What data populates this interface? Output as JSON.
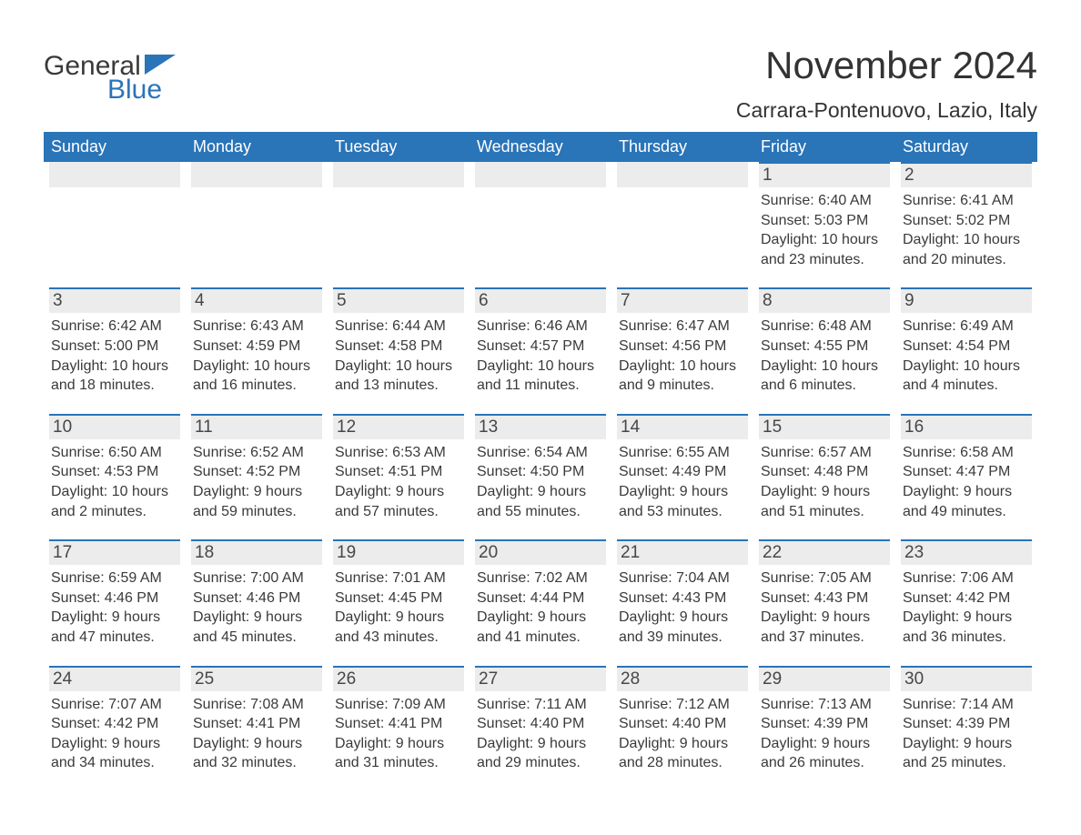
{
  "brand": {
    "word1": "General",
    "word2": "Blue",
    "accent_color": "#2a74b8"
  },
  "title": "November 2024",
  "location": "Carrara-Pontenuovo, Lazio, Italy",
  "colors": {
    "header_bg": "#2a74b8",
    "header_text": "#ffffff",
    "daynum_bg": "#ececec",
    "daynum_border": "#2a74b8",
    "body_text": "#3a3a3a",
    "page_bg": "#ffffff"
  },
  "typography": {
    "title_fontsize": 42,
    "location_fontsize": 23,
    "header_fontsize": 18,
    "daynum_fontsize": 19,
    "body_fontsize": 16
  },
  "layout": {
    "columns": 7,
    "rows": 5,
    "start_day_index": 5
  },
  "weekdays": [
    "Sunday",
    "Monday",
    "Tuesday",
    "Wednesday",
    "Thursday",
    "Friday",
    "Saturday"
  ],
  "days": [
    {
      "n": "1",
      "sunrise": "Sunrise: 6:40 AM",
      "sunset": "Sunset: 5:03 PM",
      "daylight": "Daylight: 10 hours and 23 minutes."
    },
    {
      "n": "2",
      "sunrise": "Sunrise: 6:41 AM",
      "sunset": "Sunset: 5:02 PM",
      "daylight": "Daylight: 10 hours and 20 minutes."
    },
    {
      "n": "3",
      "sunrise": "Sunrise: 6:42 AM",
      "sunset": "Sunset: 5:00 PM",
      "daylight": "Daylight: 10 hours and 18 minutes."
    },
    {
      "n": "4",
      "sunrise": "Sunrise: 6:43 AM",
      "sunset": "Sunset: 4:59 PM",
      "daylight": "Daylight: 10 hours and 16 minutes."
    },
    {
      "n": "5",
      "sunrise": "Sunrise: 6:44 AM",
      "sunset": "Sunset: 4:58 PM",
      "daylight": "Daylight: 10 hours and 13 minutes."
    },
    {
      "n": "6",
      "sunrise": "Sunrise: 6:46 AM",
      "sunset": "Sunset: 4:57 PM",
      "daylight": "Daylight: 10 hours and 11 minutes."
    },
    {
      "n": "7",
      "sunrise": "Sunrise: 6:47 AM",
      "sunset": "Sunset: 4:56 PM",
      "daylight": "Daylight: 10 hours and 9 minutes."
    },
    {
      "n": "8",
      "sunrise": "Sunrise: 6:48 AM",
      "sunset": "Sunset: 4:55 PM",
      "daylight": "Daylight: 10 hours and 6 minutes."
    },
    {
      "n": "9",
      "sunrise": "Sunrise: 6:49 AM",
      "sunset": "Sunset: 4:54 PM",
      "daylight": "Daylight: 10 hours and 4 minutes."
    },
    {
      "n": "10",
      "sunrise": "Sunrise: 6:50 AM",
      "sunset": "Sunset: 4:53 PM",
      "daylight": "Daylight: 10 hours and 2 minutes."
    },
    {
      "n": "11",
      "sunrise": "Sunrise: 6:52 AM",
      "sunset": "Sunset: 4:52 PM",
      "daylight": "Daylight: 9 hours and 59 minutes."
    },
    {
      "n": "12",
      "sunrise": "Sunrise: 6:53 AM",
      "sunset": "Sunset: 4:51 PM",
      "daylight": "Daylight: 9 hours and 57 minutes."
    },
    {
      "n": "13",
      "sunrise": "Sunrise: 6:54 AM",
      "sunset": "Sunset: 4:50 PM",
      "daylight": "Daylight: 9 hours and 55 minutes."
    },
    {
      "n": "14",
      "sunrise": "Sunrise: 6:55 AM",
      "sunset": "Sunset: 4:49 PM",
      "daylight": "Daylight: 9 hours and 53 minutes."
    },
    {
      "n": "15",
      "sunrise": "Sunrise: 6:57 AM",
      "sunset": "Sunset: 4:48 PM",
      "daylight": "Daylight: 9 hours and 51 minutes."
    },
    {
      "n": "16",
      "sunrise": "Sunrise: 6:58 AM",
      "sunset": "Sunset: 4:47 PM",
      "daylight": "Daylight: 9 hours and 49 minutes."
    },
    {
      "n": "17",
      "sunrise": "Sunrise: 6:59 AM",
      "sunset": "Sunset: 4:46 PM",
      "daylight": "Daylight: 9 hours and 47 minutes."
    },
    {
      "n": "18",
      "sunrise": "Sunrise: 7:00 AM",
      "sunset": "Sunset: 4:46 PM",
      "daylight": "Daylight: 9 hours and 45 minutes."
    },
    {
      "n": "19",
      "sunrise": "Sunrise: 7:01 AM",
      "sunset": "Sunset: 4:45 PM",
      "daylight": "Daylight: 9 hours and 43 minutes."
    },
    {
      "n": "20",
      "sunrise": "Sunrise: 7:02 AM",
      "sunset": "Sunset: 4:44 PM",
      "daylight": "Daylight: 9 hours and 41 minutes."
    },
    {
      "n": "21",
      "sunrise": "Sunrise: 7:04 AM",
      "sunset": "Sunset: 4:43 PM",
      "daylight": "Daylight: 9 hours and 39 minutes."
    },
    {
      "n": "22",
      "sunrise": "Sunrise: 7:05 AM",
      "sunset": "Sunset: 4:43 PM",
      "daylight": "Daylight: 9 hours and 37 minutes."
    },
    {
      "n": "23",
      "sunrise": "Sunrise: 7:06 AM",
      "sunset": "Sunset: 4:42 PM",
      "daylight": "Daylight: 9 hours and 36 minutes."
    },
    {
      "n": "24",
      "sunrise": "Sunrise: 7:07 AM",
      "sunset": "Sunset: 4:42 PM",
      "daylight": "Daylight: 9 hours and 34 minutes."
    },
    {
      "n": "25",
      "sunrise": "Sunrise: 7:08 AM",
      "sunset": "Sunset: 4:41 PM",
      "daylight": "Daylight: 9 hours and 32 minutes."
    },
    {
      "n": "26",
      "sunrise": "Sunrise: 7:09 AM",
      "sunset": "Sunset: 4:41 PM",
      "daylight": "Daylight: 9 hours and 31 minutes."
    },
    {
      "n": "27",
      "sunrise": "Sunrise: 7:11 AM",
      "sunset": "Sunset: 4:40 PM",
      "daylight": "Daylight: 9 hours and 29 minutes."
    },
    {
      "n": "28",
      "sunrise": "Sunrise: 7:12 AM",
      "sunset": "Sunset: 4:40 PM",
      "daylight": "Daylight: 9 hours and 28 minutes."
    },
    {
      "n": "29",
      "sunrise": "Sunrise: 7:13 AM",
      "sunset": "Sunset: 4:39 PM",
      "daylight": "Daylight: 9 hours and 26 minutes."
    },
    {
      "n": "30",
      "sunrise": "Sunrise: 7:14 AM",
      "sunset": "Sunset: 4:39 PM",
      "daylight": "Daylight: 9 hours and 25 minutes."
    }
  ]
}
